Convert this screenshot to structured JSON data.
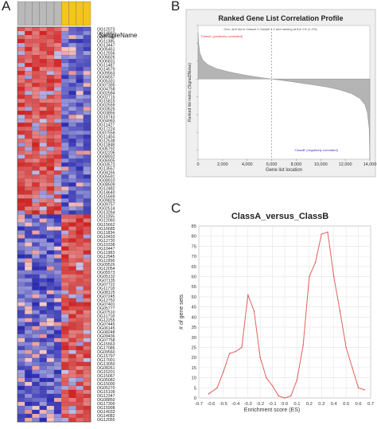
{
  "figure": {
    "panel_labels": [
      "A",
      "B",
      "C"
    ]
  },
  "heatmap": {
    "header_label": "SampleName",
    "sample_headers": [
      "",
      "",
      "",
      "",
      "",
      "",
      "",
      "",
      "",
      ""
    ],
    "header_colors": {
      "classA": "#b9b9b9",
      "classB": "#f5c518"
    },
    "class_split": 6,
    "color_high": "#d42020",
    "color_mid": "#ffffff",
    "color_low": "#2b2ab5",
    "genes": [
      "OG12073",
      "OG14882",
      "OG17943",
      "OG11385",
      "OG13447",
      "OG05451",
      "OG12556",
      "OG06826",
      "OG06831",
      "OG11487",
      "OG14579",
      "OG09563",
      "OG04557",
      "OG05331",
      "OG07395",
      "OG04758",
      "OG02584",
      "OG02715",
      "OG15815",
      "OG02559",
      "OG03626",
      "OG03856",
      "OG18743",
      "OG04983",
      "OG11427",
      "OG17224",
      "OG07558",
      "OG11404",
      "OG12538",
      "OG11848",
      "OG06792",
      "OG02206",
      "OG08932",
      "OG06905",
      "OG03573",
      "OG13557",
      "OG04165",
      "OG05591",
      "OG08910",
      "OG08509",
      "OG12482",
      "OG14640",
      "OG15569",
      "OG09829",
      "OG09757",
      "OG02514",
      "OG13264",
      "OG11055",
      "OG12060",
      "OG15662",
      "OG16685",
      "OG11834",
      "OG10433",
      "OG12730",
      "OG10338",
      "OG10447",
      "OG11983",
      "OG12945",
      "OG11958",
      "OG09526",
      "OG12054",
      "OG05573",
      "OG05132",
      "OG07135",
      "OG07722",
      "OG11718",
      "OG08125",
      "OG07245",
      "OG12752",
      "OG07401",
      "OG05777",
      "OG07510",
      "OG11718",
      "OG12255",
      "OG07445",
      "OG06145",
      "OG08248",
      "OG09436",
      "OG07758",
      "OG15563",
      "OG17085",
      "OG09560",
      "OG15797",
      "OG17001",
      "OG13050",
      "OG08261",
      "OG15201",
      "OG15067",
      "OG05082",
      "OG15000",
      "OG05270",
      "OG15109",
      "OG12347",
      "OG08850",
      "OG17300",
      "OG15998",
      "OG14033",
      "OG14082",
      "OG12055"
    ]
  },
  "rankplot": {
    "title": "Ranked Gene List Correlation Profile",
    "subtitle": "Gen. and list to ClassA 4 ClassB 1 2 and ranking at the 1% (1.2%)",
    "pos_label": "'ClassA' (positively correlated)",
    "neg_label": "'ClassB' (negatively correlated)",
    "xlabel": "Gene list location",
    "ylabel": "Ranked list metric (Signal2Noise)",
    "pos_color": "#e04040",
    "neg_color": "#3535c8",
    "xticks": [
      "0",
      "2,000",
      "4,000",
      "6,000",
      "8,000",
      "10,000",
      "12,000",
      "14,000"
    ]
  },
  "chart_data": [
    {
      "type": "area",
      "title": "Ranked Gene List Correlation Profile",
      "xlabel": "Gene list location",
      "ylabel": "Ranked list metric (Signal2Noise)",
      "xlim": [
        0,
        14000
      ],
      "ylim": [
        -4.5,
        3.0
      ],
      "zero_crossing": 6000,
      "x": [
        0,
        50,
        150,
        400,
        800,
        1500,
        2500,
        3500,
        4500,
        5500,
        6000,
        6500,
        7500,
        8500,
        9500,
        10500,
        11500,
        12500,
        13200,
        13600,
        13800,
        13950,
        14000
      ],
      "y": [
        2.6,
        2.0,
        1.45,
        1.05,
        0.8,
        0.58,
        0.4,
        0.26,
        0.14,
        0.04,
        0.0,
        -0.05,
        -0.14,
        -0.24,
        -0.34,
        -0.45,
        -0.6,
        -0.82,
        -1.1,
        -1.45,
        -1.9,
        -2.8,
        -4.5
      ]
    },
    {
      "type": "line",
      "title": "ClassA_versus_ClassB",
      "xlabel": "Enrichment score (ES)",
      "ylabel": "# of gene sets",
      "xlim": [
        -0.7,
        0.7
      ],
      "ylim": [
        0,
        85
      ],
      "xticks": [
        -0.7,
        -0.6,
        -0.5,
        -0.4,
        -0.3,
        -0.2,
        -0.1,
        0.0,
        0.1,
        0.2,
        0.3,
        0.4,
        0.5,
        0.6,
        0.7
      ],
      "yticks": [
        0,
        5,
        10,
        15,
        20,
        25,
        30,
        35,
        40,
        45,
        50,
        55,
        60,
        65,
        70,
        75,
        80,
        85
      ],
      "grid": true,
      "color": "#e06060",
      "x": [
        -0.62,
        -0.55,
        -0.5,
        -0.45,
        -0.4,
        -0.35,
        -0.3,
        -0.25,
        -0.2,
        -0.15,
        -0.1,
        -0.05,
        0.0,
        0.05,
        0.1,
        0.15,
        0.2,
        0.25,
        0.3,
        0.35,
        0.4,
        0.45,
        0.5,
        0.55,
        0.6,
        0.65
      ],
      "values": [
        2,
        5,
        13,
        22,
        23,
        25,
        51,
        43,
        20,
        10,
        6,
        1,
        0,
        1,
        9,
        26,
        60,
        67,
        81,
        82,
        60,
        43,
        25,
        15,
        5,
        4
      ]
    }
  ]
}
